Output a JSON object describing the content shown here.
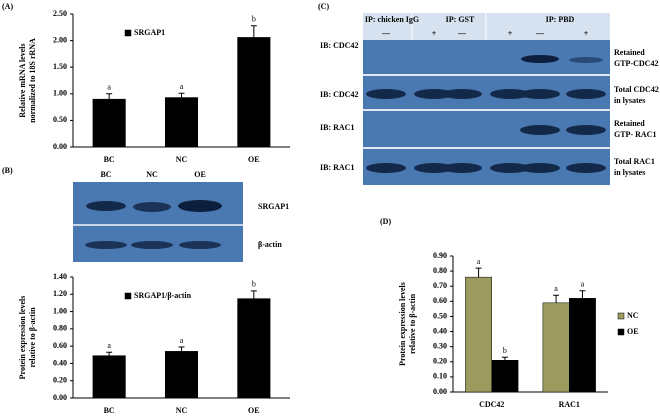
{
  "panel_labels": [
    "(A)",
    "(B)",
    "(C)",
    "(D)"
  ],
  "chart_data": [
    {
      "type": "bar",
      "ylabel": [
        "Relative mRNA levels",
        "normalized to 18S rRNA"
      ],
      "categories": [
        "BC",
        "NC",
        "OE"
      ],
      "series": [
        {
          "name": "SRGAP1",
          "color": "#000000",
          "values": [
            0.9,
            0.93,
            2.06
          ],
          "errors": [
            0.1,
            0.08,
            0.22
          ],
          "annotations": [
            "a",
            "a",
            "b"
          ]
        }
      ],
      "ylim": [
        0,
        2.5
      ],
      "yticks": [
        {
          "value": 0,
          "label": "0.00"
        },
        {
          "value": 0.5,
          "label": "0.50"
        },
        {
          "value": 1,
          "label": "1.00"
        },
        {
          "value": 1.5,
          "label": "1.50"
        },
        {
          "value": 2,
          "label": "2.00"
        },
        {
          "value": 2.5,
          "label": "2.50"
        }
      ],
      "legend": "upper left"
    },
    {
      "type": "bar",
      "ylabel": [
        "Protein expression levels",
        "relative to β-actin"
      ],
      "categories": [
        "BC",
        "NC",
        "OE"
      ],
      "series": [
        {
          "name": "SRGAP1/β-actin",
          "color": "#000000",
          "values": [
            0.49,
            0.54,
            1.15
          ],
          "errors": [
            0.04,
            0.05,
            0.09
          ],
          "annotations": [
            "a",
            "a",
            "b"
          ]
        }
      ],
      "ylim": [
        0,
        1.4
      ],
      "yticks": [
        {
          "value": 0,
          "label": "0.00"
        },
        {
          "value": 0.2,
          "label": "0.20"
        },
        {
          "value": 0.4,
          "label": "0.40"
        },
        {
          "value": 0.6,
          "label": "0.60"
        },
        {
          "value": 0.8,
          "label": "0.80"
        },
        {
          "value": 1,
          "label": "1.00"
        },
        {
          "value": 1.2,
          "label": "1.20"
        },
        {
          "value": 1.4,
          "label": "1.40"
        }
      ],
      "legend": "upper left"
    },
    {
      "type": "bar",
      "ylabel": [
        "Protein expression levels",
        "relative to β-actin"
      ],
      "categories": [
        "CDC42",
        "RAC1"
      ],
      "series": [
        {
          "name": "NC",
          "color": "#9c9a5e",
          "values": [
            0.76,
            0.59
          ],
          "errors": [
            0.06,
            0.05
          ],
          "annotations": [
            "a",
            "a"
          ]
        },
        {
          "name": "OE",
          "color": "#000000",
          "values": [
            0.21,
            0.62
          ],
          "errors": [
            0.02,
            0.05
          ],
          "annotations": [
            "b",
            "a"
          ]
        }
      ],
      "ylim": [
        0,
        0.9
      ],
      "yticks": [
        {
          "value": 0,
          "label": "0.00"
        },
        {
          "value": 0.1,
          "label": "0.10"
        },
        {
          "value": 0.2,
          "label": "0.20"
        },
        {
          "value": 0.3,
          "label": "0.30"
        },
        {
          "value": 0.4,
          "label": "0.40"
        },
        {
          "value": 0.5,
          "label": "0.50"
        },
        {
          "value": 0.6,
          "label": "0.60"
        },
        {
          "value": 0.7,
          "label": "0.70"
        },
        {
          "value": 0.8,
          "label": "0.80"
        },
        {
          "value": 0.9,
          "label": "0.90"
        }
      ],
      "legend": "right"
    }
  ],
  "blot_b": {
    "lanes": [
      "BC",
      "NC",
      "OE"
    ],
    "rows": [
      "SRGAP1",
      "β-actin"
    ]
  },
  "blot_c": {
    "groups": [
      "IP: chicken IgG",
      "IP: GST",
      "IP: PBD"
    ],
    "signs": [
      "—",
      "+",
      "—",
      "+",
      "—",
      "+"
    ],
    "left_labels": [
      "IB: CDC42",
      "IB: CDC42",
      "IB: RAC1",
      "IB: RAC1"
    ],
    "right_labels": [
      [
        "Retained",
        "GTP-CDC42"
      ],
      [
        "Total CDC42",
        "in lysates"
      ],
      [
        "Retained",
        "GTP- RAC1"
      ],
      [
        "Total RAC1",
        "in lysates"
      ]
    ]
  }
}
